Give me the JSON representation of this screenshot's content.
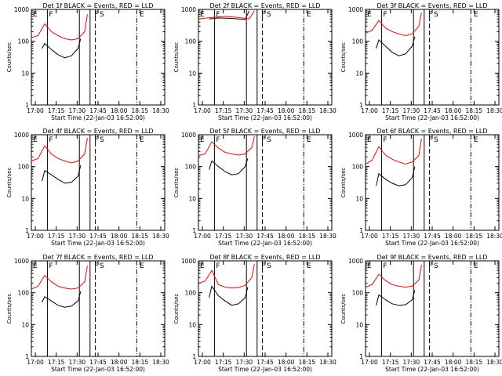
{
  "colors": {
    "events": "#000000",
    "lld": "#ff0000",
    "axes": "#000000",
    "background": "#ffffff"
  },
  "chart_data": [
    {
      "type": "line",
      "title": "Det 1f BLACK = Events, RED = LLD",
      "xlabel": "Start Time (22-Jan-03 16:52:00)",
      "ylabel": "Counts/sec",
      "yscale": "log",
      "ylim": [
        1,
        1000
      ],
      "xlim": [
        0,
        100
      ],
      "xticks": [
        "17:00",
        "17:15",
        "17:30",
        "17:45",
        "18:00",
        "18:15",
        "18:30"
      ],
      "ytick_labels": [
        "1",
        "10",
        "100",
        "1000"
      ],
      "markers": [
        "E",
        "F",
        "F",
        "S",
        "E"
      ],
      "series": [
        {
          "name": "Events",
          "x": [
            8,
            10,
            15,
            20,
            25,
            30,
            35,
            37
          ],
          "y": [
            60,
            85,
            55,
            38,
            30,
            35,
            60,
            120
          ]
        },
        {
          "name": "LLD",
          "x": [
            0,
            5,
            10,
            15,
            20,
            25,
            30,
            35,
            40,
            42
          ],
          "y": [
            130,
            150,
            350,
            200,
            150,
            120,
            110,
            120,
            200,
            700
          ]
        }
      ]
    },
    {
      "type": "line",
      "title": "Det 2f BLACK = Events, RED = LLD",
      "xlabel": "Start Time (22-Jan-03 16:52:00)",
      "ylabel": "Counts/sec",
      "yscale": "log",
      "ylim": [
        1,
        1000
      ],
      "xlim": [
        0,
        100
      ],
      "xticks": [
        "17:00",
        "17:15",
        "17:30",
        "17:45",
        "18:00",
        "18:15",
        "18:30"
      ],
      "ytick_labels": [
        "1",
        "10",
        "100",
        "1000"
      ],
      "markers": [
        "E",
        "F",
        "F",
        "S",
        "E"
      ],
      "series": [
        {
          "name": "Events",
          "x": [
            8,
            15,
            25,
            35,
            38
          ],
          "y": [
            500,
            540,
            520,
            480,
            900
          ]
        },
        {
          "name": "LLD",
          "x": [
            0,
            10,
            20,
            30,
            38,
            42
          ],
          "y": [
            500,
            560,
            600,
            560,
            500,
            900
          ]
        }
      ]
    },
    {
      "type": "line",
      "title": "Det 3f BLACK = Events, RED = LLD",
      "xlabel": "Start Time (22-Jan-03 16:52:00)",
      "ylabel": "Counts/sec",
      "yscale": "log",
      "ylim": [
        1,
        1000
      ],
      "xlim": [
        0,
        100
      ],
      "xticks": [
        "17:00",
        "17:15",
        "17:30",
        "17:45",
        "18:00",
        "18:15",
        "18:30"
      ],
      "ytick_labels": [
        "1",
        "10",
        "100",
        "1000"
      ],
      "markers": [
        "E",
        "F",
        "F",
        "S",
        "E"
      ],
      "series": [
        {
          "name": "Events",
          "x": [
            8,
            10,
            15,
            20,
            25,
            30,
            35,
            37
          ],
          "y": [
            60,
            110,
            70,
            45,
            35,
            40,
            70,
            140
          ]
        },
        {
          "name": "LLD",
          "x": [
            0,
            5,
            10,
            15,
            20,
            25,
            30,
            35,
            40,
            42
          ],
          "y": [
            180,
            220,
            450,
            260,
            200,
            170,
            150,
            170,
            300,
            800
          ]
        }
      ]
    },
    {
      "type": "line",
      "title": "Det 4f BLACK = Events, RED = LLD",
      "xlabel": "Start Time (22-Jan-03 16:52:00)",
      "ylabel": "Counts/sec",
      "yscale": "log",
      "ylim": [
        1,
        1000
      ],
      "xlim": [
        0,
        100
      ],
      "xticks": [
        "17:00",
        "17:15",
        "17:30",
        "17:45",
        "18:00",
        "18:15",
        "18:30"
      ],
      "ytick_labels": [
        "1",
        "10",
        "100",
        "1000"
      ],
      "markers": [
        "E",
        "F",
        "F",
        "S",
        "E"
      ],
      "series": [
        {
          "name": "Events",
          "x": [
            8,
            10,
            15,
            20,
            25,
            30,
            35,
            37
          ],
          "y": [
            35,
            75,
            55,
            40,
            30,
            32,
            50,
            110
          ]
        },
        {
          "name": "LLD",
          "x": [
            0,
            5,
            10,
            15,
            20,
            25,
            30,
            35,
            40,
            42
          ],
          "y": [
            150,
            180,
            450,
            250,
            180,
            150,
            130,
            150,
            250,
            800
          ]
        }
      ]
    },
    {
      "type": "line",
      "title": "Det 5f BLACK = Events, RED = LLD",
      "xlabel": "Start Time (22-Jan-03 16:52:00)",
      "ylabel": "Counts/sec",
      "yscale": "log",
      "ylim": [
        1,
        1000
      ],
      "xlim": [
        0,
        100
      ],
      "xticks": [
        "17:00",
        "17:15",
        "17:30",
        "17:45",
        "18:00",
        "18:15",
        "18:30"
      ],
      "ytick_labels": [
        "1",
        "10",
        "100",
        "1000"
      ],
      "markers": [
        "E",
        "F",
        "F",
        "S",
        "E"
      ],
      "series": [
        {
          "name": "Events",
          "x": [
            8,
            10,
            15,
            20,
            25,
            30,
            35,
            37
          ],
          "y": [
            80,
            150,
            100,
            70,
            55,
            60,
            100,
            180
          ]
        },
        {
          "name": "LLD",
          "x": [
            0,
            5,
            10,
            15,
            20,
            25,
            30,
            35,
            40,
            42
          ],
          "y": [
            220,
            250,
            600,
            380,
            280,
            250,
            230,
            250,
            400,
            900
          ]
        }
      ]
    },
    {
      "type": "line",
      "title": "Det 6f BLACK = Events, RED = LLD",
      "xlabel": "Start Time (22-Jan-03 16:52:00)",
      "ylabel": "Counts/sec",
      "yscale": "log",
      "ylim": [
        1,
        1000
      ],
      "xlim": [
        0,
        100
      ],
      "xticks": [
        "17:00",
        "17:15",
        "17:30",
        "17:45",
        "18:00",
        "18:15",
        "18:30"
      ],
      "ytick_labels": [
        "1",
        "10",
        "100",
        "1000"
      ],
      "markers": [
        "E",
        "F",
        "F",
        "S",
        "E"
      ],
      "series": [
        {
          "name": "Events",
          "x": [
            8,
            10,
            15,
            20,
            25,
            30,
            35,
            37
          ],
          "y": [
            25,
            60,
            40,
            30,
            25,
            27,
            45,
            100
          ]
        },
        {
          "name": "LLD",
          "x": [
            0,
            5,
            10,
            15,
            20,
            25,
            30,
            35,
            40,
            42
          ],
          "y": [
            120,
            160,
            420,
            230,
            170,
            140,
            120,
            140,
            220,
            750
          ]
        }
      ]
    },
    {
      "type": "line",
      "title": "Det 7f BLACK = Events, RED = LLD",
      "xlabel": "Start Time (22-Jan-03 16:52:00)",
      "ylabel": "Counts/sec",
      "yscale": "log",
      "ylim": [
        1,
        1000
      ],
      "xlim": [
        0,
        100
      ],
      "xticks": [
        "17:00",
        "17:15",
        "17:30",
        "17:45",
        "18:00",
        "18:15",
        "18:30"
      ],
      "ytick_labels": [
        "1",
        "10",
        "100",
        "1000"
      ],
      "markers": [
        "E",
        "F",
        "F",
        "S",
        "E"
      ],
      "series": [
        {
          "name": "Events",
          "x": [
            8,
            10,
            15,
            20,
            25,
            30,
            35,
            37
          ],
          "y": [
            50,
            75,
            55,
            40,
            35,
            38,
            55,
            110
          ]
        },
        {
          "name": "LLD",
          "x": [
            0,
            5,
            10,
            15,
            20,
            25,
            30,
            35,
            40,
            42
          ],
          "y": [
            130,
            160,
            350,
            220,
            160,
            140,
            130,
            140,
            220,
            700
          ]
        }
      ]
    },
    {
      "type": "line",
      "title": "Det 8f BLACK = Events, RED = LLD",
      "xlabel": "Start Time (22-Jan-03 16:52:00)",
      "ylabel": "Counts/sec",
      "yscale": "log",
      "ylim": [
        1,
        1000
      ],
      "xlim": [
        0,
        100
      ],
      "xticks": [
        "17:00",
        "17:15",
        "17:30",
        "17:45",
        "18:00",
        "18:15",
        "18:30"
      ],
      "ytick_labels": [
        "1",
        "10",
        "100",
        "1000"
      ],
      "markers": [
        "E",
        "F",
        "F",
        "S",
        "E"
      ],
      "series": [
        {
          "name": "Events",
          "x": [
            8,
            10,
            15,
            20,
            25,
            30,
            35,
            37
          ],
          "y": [
            70,
            160,
            80,
            55,
            40,
            45,
            70,
            150
          ]
        },
        {
          "name": "LLD",
          "x": [
            0,
            5,
            10,
            15,
            20,
            25,
            30,
            35,
            40,
            42
          ],
          "y": [
            200,
            230,
            500,
            180,
            150,
            140,
            145,
            170,
            300,
            800
          ]
        }
      ]
    },
    {
      "type": "line",
      "title": "Det 9f BLACK = Events, RED = LLD",
      "xlabel": "Start Time (22-Jan-03 16:52:00)",
      "ylabel": "Counts/sec",
      "yscale": "log",
      "ylim": [
        1,
        1000
      ],
      "xlim": [
        0,
        100
      ],
      "xticks": [
        "17:00",
        "17:15",
        "17:30",
        "17:45",
        "18:00",
        "18:15",
        "18:30"
      ],
      "ytick_labels": [
        "1",
        "10",
        "100",
        "1000"
      ],
      "markers": [
        "E",
        "F",
        "F",
        "S",
        "E"
      ],
      "series": [
        {
          "name": "Events",
          "x": [
            8,
            10,
            15,
            20,
            25,
            30,
            35,
            37
          ],
          "y": [
            40,
            85,
            60,
            45,
            40,
            42,
            60,
            120
          ]
        },
        {
          "name": "LLD",
          "x": [
            0,
            5,
            10,
            15,
            20,
            25,
            30,
            35,
            40,
            42
          ],
          "y": [
            150,
            180,
            380,
            240,
            180,
            160,
            150,
            160,
            250,
            750
          ]
        }
      ]
    }
  ]
}
